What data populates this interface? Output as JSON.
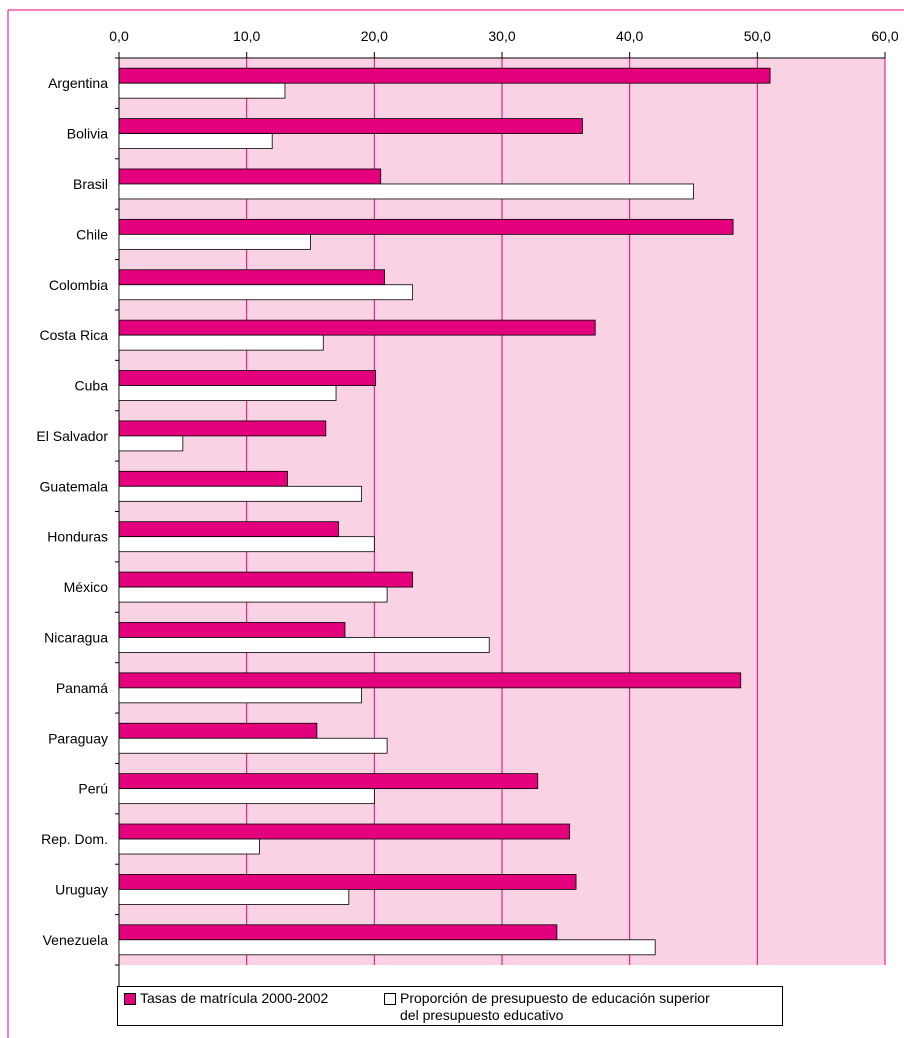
{
  "colors": {
    "plot_background": "#f9d3e4",
    "enrollment_bar": "#e4007c",
    "budget_bar": "#ffffff",
    "gridline": "#e4007c",
    "frame": "#e4007c"
  },
  "legend": [
    {
      "key": "enrollment",
      "label": "Tasas de matrícula  2000-2002"
    },
    {
      "key": "budget",
      "label": "Proporción de presupuesto de educación superior del presupuesto educativo",
      "line1": "Proporción de presupuesto de educación superior",
      "line2": "del presupuesto educativo"
    }
  ],
  "chart_data": {
    "type": "bar",
    "orientation": "horizontal",
    "title": "",
    "xlabel": "",
    "ylabel": "",
    "xlim": [
      0,
      60
    ],
    "ticks": [
      "0,0",
      "10,0",
      "20,0",
      "30,0",
      "40,0",
      "50,0",
      "60,0"
    ],
    "tick_values": [
      0,
      10,
      20,
      30,
      40,
      50,
      60
    ],
    "grid": true,
    "legend_position": "bottom",
    "categories": [
      "Argentina",
      "Bolivia",
      "Brasil",
      "Chile",
      "Colombia",
      "Costa Rica",
      "Cuba",
      "El Salvador",
      "Guatemala",
      "Honduras",
      "México",
      "Nicaragua",
      "Panamá",
      "Paraguay",
      "Perú",
      "Rep. Dom.",
      "Uruguay",
      "Venezuela"
    ],
    "series": [
      {
        "name": "Tasas de matrícula  2000-2002",
        "values": [
          51,
          36.3,
          20.5,
          48.1,
          20.8,
          37.3,
          20.1,
          16.2,
          13.2,
          17.2,
          23,
          17.7,
          48.7,
          15.5,
          32.8,
          35.3,
          35.8,
          34.3
        ]
      },
      {
        "name": "Proporción de presupuesto de educación superior del presupuesto educativo",
        "values": [
          13,
          12,
          45,
          15,
          23,
          16,
          17,
          5,
          19,
          20,
          21,
          29,
          19,
          21,
          20,
          11,
          18,
          42
        ]
      }
    ]
  }
}
